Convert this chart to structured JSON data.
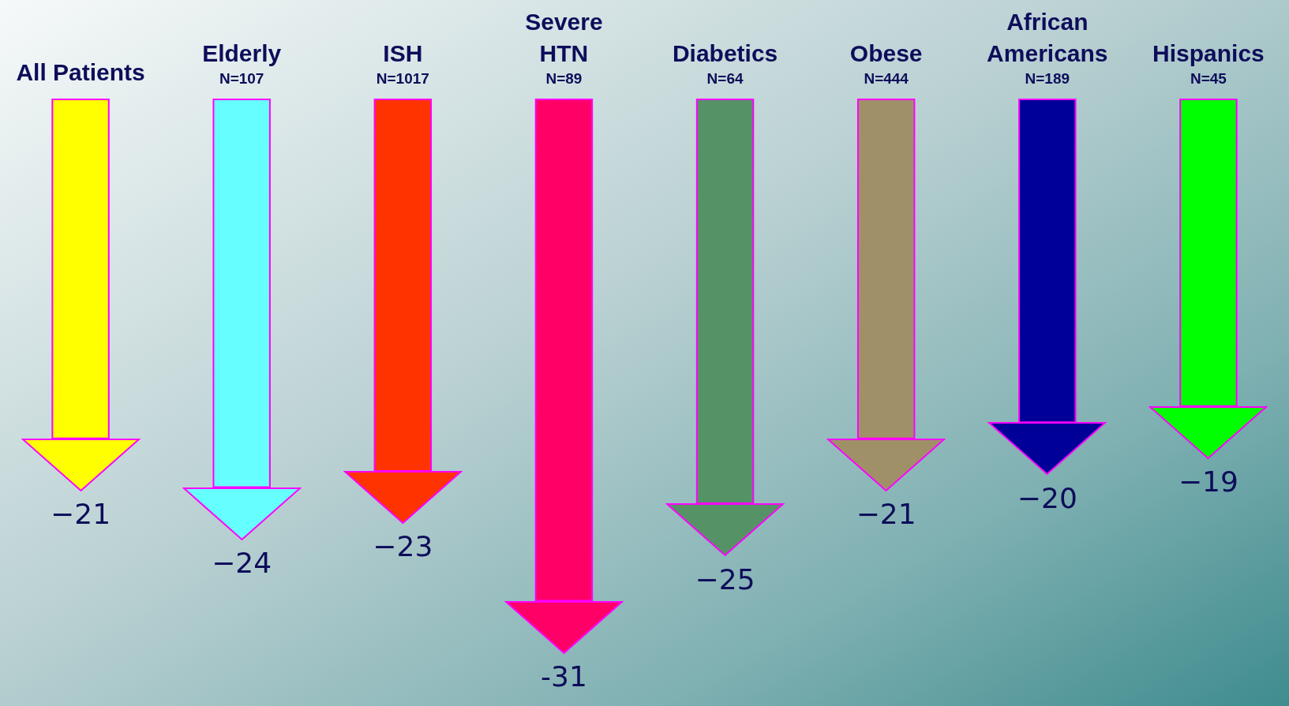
{
  "chart_data": {
    "type": "bar",
    "categories": [
      "All Patients",
      "Elderly\nN=107",
      "ISH\nN=1017",
      "Severe\nHTN\nN=89",
      "Diabetics\nN=64",
      "Obese\nN=444",
      "African\nAmericans\nN=189",
      "Hispanics\nN=45"
    ],
    "values": [
      -21,
      -24,
      -23,
      -31,
      -25,
      -21,
      -20,
      -19
    ],
    "colors": [
      "#ffff00",
      "#66ffff",
      "#ff3300",
      "#ff0066",
      "#559266",
      "#a09068",
      "#000099",
      "#00ff00"
    ],
    "value_labels": [
      "−21",
      "−24",
      "−23",
      "-31",
      "−25",
      "−21",
      "−20",
      "−19"
    ]
  }
}
